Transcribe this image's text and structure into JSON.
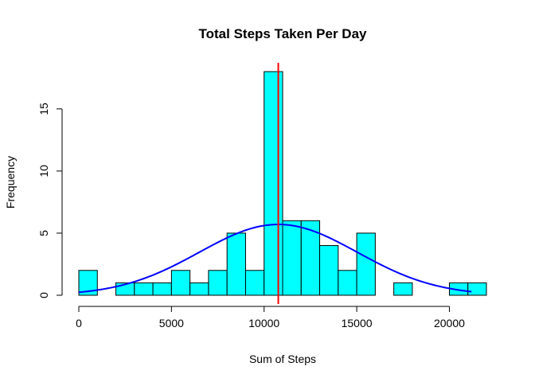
{
  "chart_data": {
    "type": "bar",
    "title": "Total Steps Taken Per Day",
    "xlabel": "Sum of Steps",
    "ylabel": "Frequency",
    "xlim": [
      0,
      22000
    ],
    "ylim": [
      0,
      18
    ],
    "x_ticks": [
      0,
      5000,
      10000,
      15000,
      20000
    ],
    "y_ticks": [
      0,
      5,
      10,
      15
    ],
    "bin_width": 1000,
    "bins_start": [
      0,
      1000,
      2000,
      3000,
      4000,
      5000,
      6000,
      7000,
      8000,
      9000,
      10000,
      11000,
      12000,
      13000,
      14000,
      15000,
      16000,
      17000,
      18000,
      19000,
      20000,
      21000
    ],
    "values": [
      2,
      0,
      1,
      1,
      1,
      2,
      1,
      2,
      5,
      2,
      18,
      6,
      6,
      4,
      2,
      5,
      0,
      1,
      0,
      0,
      1,
      1
    ],
    "grid": false,
    "colors": {
      "bars": "#00ffff",
      "bar_edge": "#000000",
      "mean_line": "#ff0000",
      "normal_curve": "#0000ff"
    },
    "mean_line_x": 10766,
    "normal_curve": {
      "mean": 10766,
      "sd": 4269,
      "x_range": [
        0,
        21194
      ]
    }
  }
}
